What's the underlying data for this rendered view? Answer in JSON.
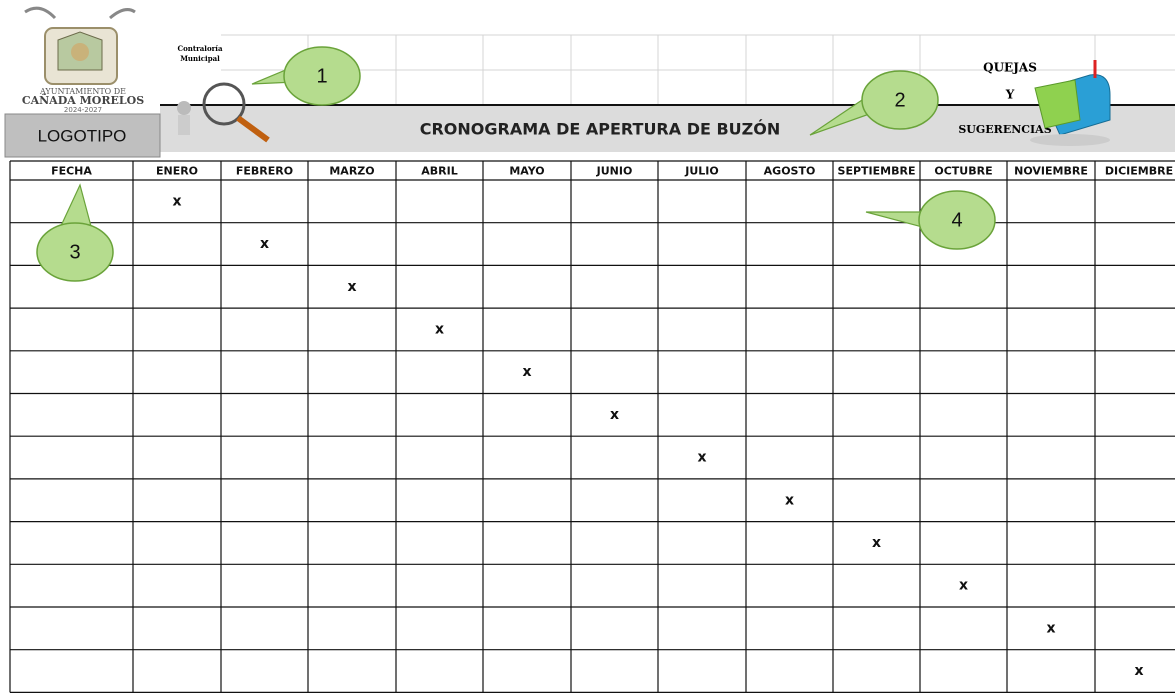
{
  "logo": {
    "line1": "AYUNTAMIENTO DE",
    "line2": "CAÑADA MORELOS",
    "line3": "2024-2027",
    "placeholder": "LOGOTIPO"
  },
  "header": {
    "office_line1": "Contraloría",
    "office_line2": "Municipal",
    "title": "CRONOGRAMA DE APERTURA DE BUZÓN",
    "right_line1": "QUEJAS",
    "right_line2": "Y",
    "right_line3": "SUGERENCIAS"
  },
  "callouts": [
    "1",
    "2",
    "3",
    "4"
  ],
  "table": {
    "header": [
      "FECHA",
      "ENERO",
      "FEBRERO",
      "MARZO",
      "ABRIL",
      "MAYO",
      "JUNIO",
      "JULIO",
      "AGOSTO",
      "SEPTIEMBRE",
      "OCTUBRE",
      "NOVIEMBRE",
      "DICIEMBRE"
    ],
    "rows": [
      [
        null,
        "x",
        null,
        null,
        null,
        null,
        null,
        null,
        null,
        null,
        null,
        null,
        null
      ],
      [
        null,
        null,
        "x",
        null,
        null,
        null,
        null,
        null,
        null,
        null,
        null,
        null,
        null
      ],
      [
        null,
        null,
        null,
        "x",
        null,
        null,
        null,
        null,
        null,
        null,
        null,
        null,
        null
      ],
      [
        null,
        null,
        null,
        null,
        "x",
        null,
        null,
        null,
        null,
        null,
        null,
        null,
        null
      ],
      [
        null,
        null,
        null,
        null,
        null,
        "x",
        null,
        null,
        null,
        null,
        null,
        null,
        null
      ],
      [
        null,
        null,
        null,
        null,
        null,
        null,
        "x",
        null,
        null,
        null,
        null,
        null,
        null
      ],
      [
        null,
        null,
        null,
        null,
        null,
        null,
        null,
        "x",
        null,
        null,
        null,
        null,
        null
      ],
      [
        null,
        null,
        null,
        null,
        null,
        null,
        null,
        null,
        "x",
        null,
        null,
        null,
        null
      ],
      [
        null,
        null,
        null,
        null,
        null,
        null,
        null,
        null,
        null,
        "x",
        null,
        null,
        null
      ],
      [
        null,
        null,
        null,
        null,
        null,
        null,
        null,
        null,
        null,
        null,
        "x",
        null,
        null
      ],
      [
        null,
        null,
        null,
        null,
        null,
        null,
        null,
        null,
        null,
        null,
        null,
        "x",
        null
      ],
      [
        null,
        null,
        null,
        null,
        null,
        null,
        null,
        null,
        null,
        null,
        null,
        null,
        "x"
      ]
    ]
  }
}
